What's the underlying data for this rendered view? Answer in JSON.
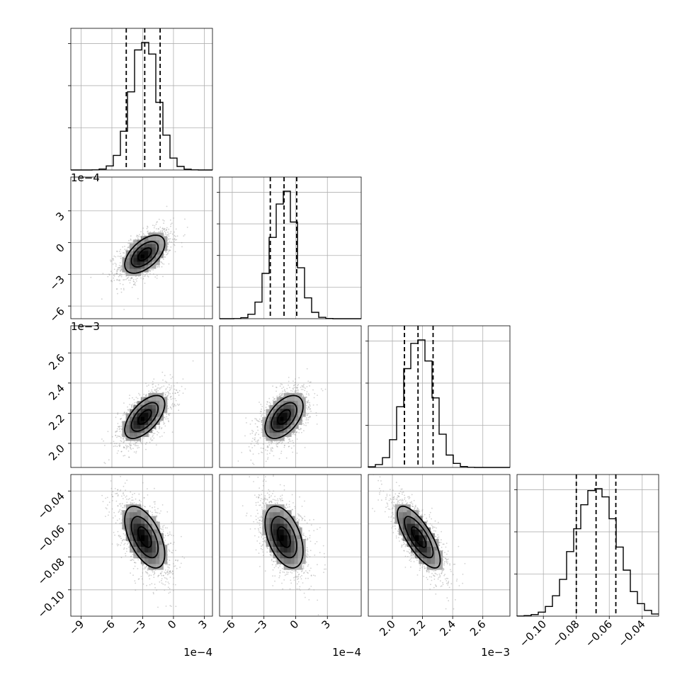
{
  "chart_data": {
    "type": "corner",
    "n_params": 4,
    "colors": {
      "hist": "#000000",
      "grid": "#b0b0b0",
      "points": "#9a9a9a",
      "density": "#000000"
    },
    "quantile_lines": "dashed",
    "params": [
      {
        "range": [
          -10.0,
          3.8
        ],
        "ticks": [
          -9,
          -6,
          -3,
          0,
          3
        ],
        "tick_labels": [
          "−9",
          "−6",
          "−3",
          "0",
          "3"
        ],
        "offset_label": "1e−4",
        "quantiles": [
          -4.6,
          -2.8,
          -1.3
        ],
        "mean": -2.8,
        "sd": 1.3
      },
      {
        "range": [
          -7.2,
          6.2
        ],
        "ticks": [
          -6,
          -3,
          0,
          3
        ],
        "tick_labels": [
          "−6",
          "−3",
          "0",
          "3"
        ],
        "offset_label": "1e−4",
        "quantiles": [
          -2.4,
          -1.1,
          0.1
        ],
        "mean": -1.1,
        "sd": 1.2
      },
      {
        "range": [
          1.84,
          2.78
        ],
        "ticks": [
          2.0,
          2.2,
          2.4,
          2.6
        ],
        "tick_labels": [
          "2.0",
          "2.2",
          "2.4",
          "2.6"
        ],
        "offset_label": "1e−3",
        "quantiles": [
          2.08,
          2.17,
          2.27
        ],
        "mean": 2.175,
        "sd": 0.095
      },
      {
        "range": [
          -0.116,
          -0.03
        ],
        "ticks": [
          -0.1,
          -0.08,
          -0.06,
          -0.04
        ],
        "tick_labels": [
          "−0.10",
          "−0.08",
          "−0.06",
          "−0.04"
        ],
        "offset_label": "",
        "quantiles": [
          -0.08,
          -0.068,
          -0.056
        ],
        "mean": -0.068,
        "sd": 0.0125
      }
    ],
    "hist_ticks": [
      [
        0,
        1,
        2,
        3
      ],
      [
        0,
        1,
        2,
        3,
        4
      ],
      [
        0,
        1,
        2,
        3
      ],
      [
        0,
        1,
        2,
        3
      ]
    ],
    "correlations": {
      "1-0": 0.55,
      "2-0": 0.6,
      "2-1": 0.5,
      "3-0": -0.55,
      "3-1": -0.45,
      "3-2": -0.75
    }
  }
}
